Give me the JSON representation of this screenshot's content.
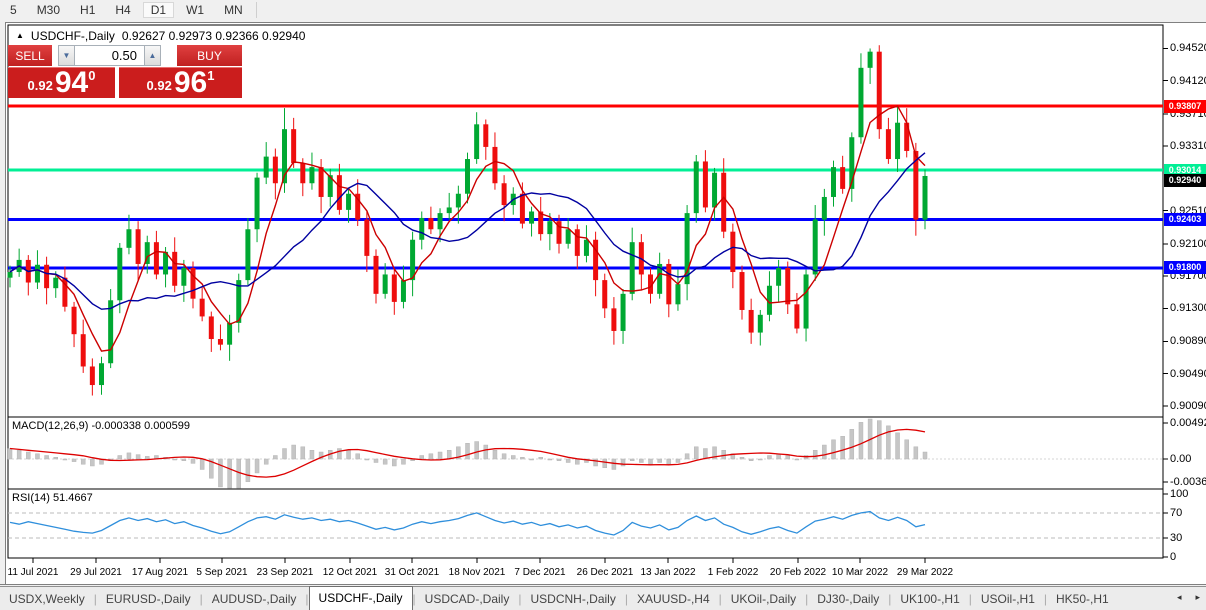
{
  "toolbar": {
    "timeframes": [
      "5",
      "M30",
      "H1",
      "H4",
      "D1",
      "W1",
      "MN"
    ],
    "active_timeframe": "D1"
  },
  "chart_header": {
    "collapse_icon": "collapse-triangle",
    "symbol_label": "USDCHF-,Daily",
    "ohlc": "0.92627 0.92973 0.92366 0.92940"
  },
  "trade_panel": {
    "sell_label": "SELL",
    "buy_label": "BUY",
    "volume": "0.50",
    "sell_price": {
      "prefix": "0.92",
      "big": "94",
      "sup": "0"
    },
    "buy_price": {
      "prefix": "0.92",
      "big": "96",
      "sup": "1"
    }
  },
  "price_axis_ticks": [
    "0.94520",
    "0.94120",
    "0.93710",
    "0.93310",
    "0.92510",
    "0.92100",
    "0.91700",
    "0.91300",
    "0.90890",
    "0.90490",
    "0.90090"
  ],
  "date_axis": [
    "11 Jul 2021",
    "29 Jul 2021",
    "17 Aug 2021",
    "5 Sep 2021",
    "23 Sep 2021",
    "12 Oct 2021",
    "31 Oct 2021",
    "18 Nov 2021",
    "7 Dec 2021",
    "26 Dec 2021",
    "13 Jan 2022",
    "1 Feb 2022",
    "20 Feb 2022",
    "10 Mar 2022",
    "29 Mar 2022"
  ],
  "macd_label": "MACD(12,26,9) -0.000338 0.000599",
  "rsi_label": "RSI(14) 51.4667",
  "tabs": {
    "items": [
      "USDX,Weekly",
      "EURUSD-,Daily",
      "AUDUSD-,Daily",
      "USDCHF-,Daily",
      "USDCAD-,Daily",
      "USDCNH-,Daily",
      "XAUUSD-,H4",
      "UKOil-,Daily",
      "DJ30-,Daily",
      "UK100-,H1",
      "USOil-,H1",
      "HK50-,H1"
    ],
    "active_index": 3,
    "scroll_left_icon": "left-triangle",
    "scroll_right_icon": "right-triangle"
  },
  "chart_data": {
    "type": "candlestick",
    "symbol": "USDCHF-,Daily",
    "up_color": "#00a832",
    "down_color": "#ee0e0e",
    "y_range": [
      0.8995,
      0.9476
    ],
    "first_open": 0.9168,
    "closes": [
      0.9175,
      0.919,
      0.9162,
      0.9184,
      0.9155,
      0.9168,
      0.9132,
      0.9098,
      0.9058,
      0.9035,
      0.9062,
      0.914,
      0.9205,
      0.9228,
      0.9185,
      0.9212,
      0.9172,
      0.92,
      0.9158,
      0.918,
      0.9142,
      0.912,
      0.9092,
      0.9085,
      0.9112,
      0.9165,
      0.9228,
      0.9292,
      0.9318,
      0.9285,
      0.9352,
      0.931,
      0.9285,
      0.9305,
      0.9268,
      0.9295,
      0.9252,
      0.9272,
      0.924,
      0.9195,
      0.9148,
      0.9172,
      0.9138,
      0.9165,
      0.9215,
      0.9242,
      0.9228,
      0.9248,
      0.9255,
      0.9272,
      0.9315,
      0.9358,
      0.933,
      0.9285,
      0.9258,
      0.9272,
      0.9235,
      0.925,
      0.9222,
      0.9238,
      0.921,
      0.9228,
      0.9195,
      0.9215,
      0.9165,
      0.913,
      0.9102,
      0.9148,
      0.9212,
      0.9172,
      0.9148,
      0.9185,
      0.9135,
      0.916,
      0.9248,
      0.9312,
      0.9255,
      0.9298,
      0.9225,
      0.9175,
      0.9128,
      0.91,
      0.9122,
      0.9158,
      0.918,
      0.9135,
      0.9105,
      0.9172,
      0.924,
      0.9268,
      0.9305,
      0.9278,
      0.9342,
      0.9428,
      0.9448,
      0.9352,
      0.9315,
      0.936,
      0.9325,
      0.924,
      0.9294
    ],
    "wick_high_pattern": [
      0.0008,
      0.0014,
      0.0006,
      0.0018,
      0.001
    ],
    "wick_low_pattern": [
      0.0012,
      0.0006,
      0.0016,
      0.0008,
      0.002
    ],
    "wick_overrides": {
      "9": {
        "low": 0.9022
      },
      "23": {
        "low": 0.9078
      },
      "30": {
        "high": 0.9378
      },
      "51": {
        "high": 0.9373
      },
      "66": {
        "low": 0.9085
      },
      "81": {
        "low": 0.9086
      },
      "94": {
        "high": 0.9452
      },
      "97": {
        "high": 0.93805
      },
      "100": {
        "low": 0.9228
      }
    },
    "levels": [
      {
        "price": 0.93807,
        "color": "#ff0000",
        "badge": "0.93807"
      },
      {
        "price": 0.93014,
        "color": "#00ef95",
        "badge": "0.93014"
      },
      {
        "price": 0.92403,
        "color": "#0000ff",
        "badge": "0.92403"
      },
      {
        "price": 0.918,
        "color": "#0000ff",
        "badge": "0.91800"
      }
    ],
    "current_price": {
      "value": 0.9294,
      "badge": "0.92940",
      "color": "#000000"
    },
    "ma_fast": {
      "period": 5,
      "color": "#cc0000"
    },
    "ma_slow": {
      "period": 13,
      "color": "#0000a0"
    },
    "macd": {
      "hist_color": "#c6c6c6",
      "signal_color": "#dd0000",
      "signal_period": 9,
      "axis_labels": [
        "0.004926",
        "0.00",
        "-0.00361"
      ],
      "hist": [
        0.0012,
        0.001,
        0.0008,
        0.0006,
        0.0004,
        0.0002,
        0.0,
        -0.0003,
        -0.0006,
        -0.0008,
        -0.0006,
        -0.0002,
        0.0004,
        0.0007,
        0.0005,
        0.0003,
        0.0004,
        0.0002,
        0.0,
        -0.0002,
        -0.0005,
        -0.0012,
        -0.0022,
        -0.0032,
        -0.0034,
        -0.0034,
        -0.0026,
        -0.0016,
        -0.0006,
        0.0004,
        0.0012,
        0.0016,
        0.0014,
        0.001,
        0.0008,
        0.001,
        0.0012,
        0.001,
        0.0006,
        0.0,
        -0.0004,
        -0.0006,
        -0.0008,
        -0.0006,
        -0.0002,
        0.0004,
        0.0006,
        0.0008,
        0.001,
        0.0014,
        0.0018,
        0.002,
        0.0016,
        0.001,
        0.0006,
        0.0004,
        0.0002,
        0.0,
        0.0002,
        0.0,
        -0.0002,
        -0.0004,
        -0.0006,
        -0.0004,
        -0.0008,
        -0.001,
        -0.0012,
        -0.0008,
        -0.0002,
        -0.0004,
        -0.0006,
        -0.0004,
        -0.0006,
        -0.0004,
        0.0006,
        0.0014,
        0.0012,
        0.0014,
        0.001,
        0.0006,
        0.0002,
        -0.0002,
        0.0,
        0.0004,
        0.0006,
        0.0004,
        0.0,
        0.0004,
        0.001,
        0.0016,
        0.0022,
        0.0026,
        0.0034,
        0.0042,
        0.0047,
        0.0044,
        0.0038,
        0.003,
        0.0022,
        0.0014,
        0.0008
      ]
    },
    "rsi": {
      "color": "#2f8fdc",
      "overbought": 70,
      "oversold": 30,
      "axis_labels": [
        "100",
        "70",
        "30",
        "0"
      ],
      "values": [
        55,
        52,
        56,
        53,
        50,
        47,
        44,
        41,
        39,
        38,
        42,
        50,
        58,
        62,
        58,
        61,
        56,
        59,
        53,
        56,
        50,
        46,
        41,
        37,
        40,
        48,
        56,
        62,
        64,
        60,
        67,
        63,
        60,
        62,
        58,
        60,
        56,
        58,
        54,
        49,
        44,
        47,
        43,
        46,
        52,
        56,
        53,
        56,
        58,
        61,
        66,
        70,
        64,
        58,
        54,
        57,
        52,
        55,
        50,
        53,
        48,
        51,
        46,
        49,
        42,
        38,
        35,
        42,
        55,
        49,
        46,
        51,
        43,
        47,
        58,
        65,
        58,
        62,
        52,
        47,
        40,
        36,
        40,
        45,
        48,
        42,
        38,
        48,
        57,
        60,
        64,
        60,
        66,
        70,
        72,
        62,
        58,
        63,
        58,
        48,
        51.5
      ]
    }
  }
}
